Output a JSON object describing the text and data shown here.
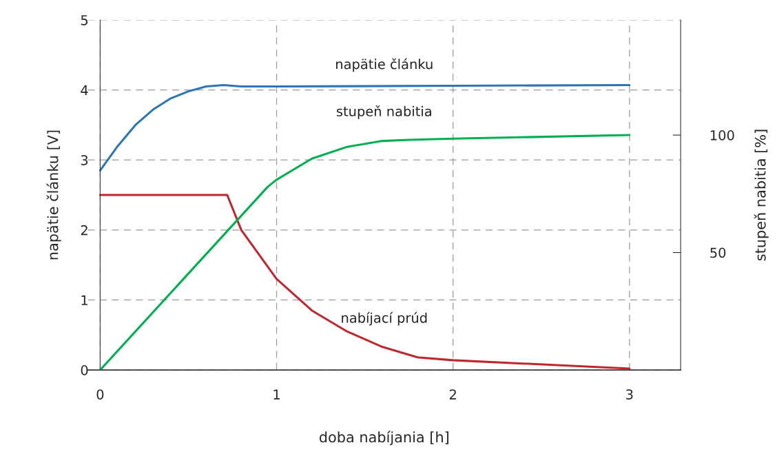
{
  "chart_data": {
    "type": "line",
    "xlabel": "doba nabíjania [h]",
    "ylabel": "napätie článku [V]",
    "y2label": "stupeň nabitia [%]",
    "xlim": [
      -0.07,
      3.29
    ],
    "xticks": [
      0,
      1,
      2,
      3
    ],
    "ylim": [
      0,
      5
    ],
    "yticks": [
      0,
      1,
      2,
      3,
      4,
      5
    ],
    "y2lim": [
      0,
      149
    ],
    "y2ticks": [
      50,
      100
    ],
    "grid": true,
    "series": [
      {
        "name": "napätie článku",
        "color": "#2e75b6",
        "x": [
          0,
          0.1,
          0.2,
          0.3,
          0.4,
          0.5,
          0.6,
          0.7,
          0.75,
          0.8,
          1,
          2,
          3
        ],
        "values": [
          2.85,
          3.2,
          3.5,
          3.72,
          3.88,
          3.98,
          4.05,
          4.07,
          4.06,
          4.05,
          4.05,
          4.06,
          4.07
        ]
      },
      {
        "name": "stupeň nabitia",
        "color": "#00b050",
        "axis": "y2",
        "x": [
          0,
          0.95,
          1.0,
          1.2,
          1.4,
          1.6,
          1.75,
          2,
          3
        ],
        "values": [
          0,
          78,
          81,
          90,
          95,
          97.5,
          98,
          98.5,
          100
        ]
      },
      {
        "name": "nabíjací prúd",
        "color": "#c0272d",
        "x": [
          0,
          0.72,
          0.8,
          1.0,
          1.2,
          1.4,
          1.6,
          1.8,
          2,
          3
        ],
        "values": [
          2.5,
          2.5,
          2.0,
          1.3,
          0.85,
          0.55,
          0.33,
          0.18,
          0.14,
          0.02
        ]
      }
    ]
  }
}
